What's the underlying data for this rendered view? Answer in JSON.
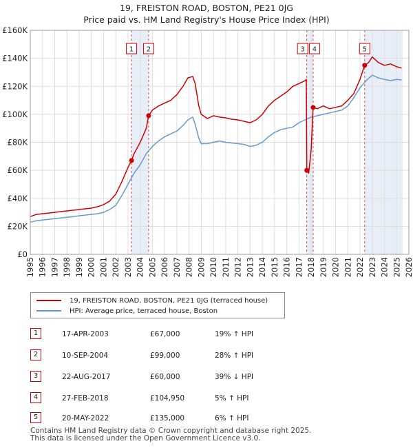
{
  "header": {
    "title": "19, FREISTON ROAD, BOSTON, PE21 0JG",
    "subtitle": "Price paid vs. HM Land Registry's House Price Index (HPI)"
  },
  "colors": {
    "property": "#cc0000",
    "hpi": "#6699cc",
    "band": "#e8eef8",
    "marker": "#cc0000"
  },
  "chart_data": {
    "type": "line",
    "xlim": [
      1995,
      2026
    ],
    "ylim": [
      0,
      160000
    ],
    "yticks": [
      {
        "v": 0,
        "label": "£0"
      },
      {
        "v": 20000,
        "label": "£20K"
      },
      {
        "v": 40000,
        "label": "£40K"
      },
      {
        "v": 60000,
        "label": "£60K"
      },
      {
        "v": 80000,
        "label": "£80K"
      },
      {
        "v": 100000,
        "label": "£100K"
      },
      {
        "v": 120000,
        "label": "£120K"
      },
      {
        "v": 140000,
        "label": "£140K"
      },
      {
        "v": 160000,
        "label": "£160K"
      }
    ],
    "xticks": [
      1995,
      1996,
      1997,
      1998,
      1999,
      2000,
      2001,
      2002,
      2003,
      2004,
      2005,
      2006,
      2007,
      2008,
      2009,
      2010,
      2011,
      2012,
      2013,
      2014,
      2015,
      2016,
      2017,
      2018,
      2019,
      2020,
      2021,
      2022,
      2023,
      2024,
      2025,
      2026
    ],
    "bands": [
      [
        2003.29,
        2004.69
      ],
      [
        2017.64,
        2018.16
      ],
      [
        2022.38,
        2025.5
      ]
    ],
    "series": [
      {
        "name": "19, FREISTON ROAD, BOSTON, PE21 0JG (terraced house)",
        "x": [
          1995.0,
          1995.5,
          1996.0,
          1996.5,
          1997.0,
          1997.5,
          1998.0,
          1998.5,
          1999.0,
          1999.5,
          2000.0,
          2000.5,
          2001.0,
          2001.5,
          2002.0,
          2002.5,
          2003.0,
          2003.29,
          2003.5,
          2004.0,
          2004.5,
          2004.69,
          2005.0,
          2005.5,
          2006.0,
          2006.5,
          2007.0,
          2007.5,
          2007.9,
          2008.3,
          2008.5,
          2008.8,
          2009.0,
          2009.5,
          2010.0,
          2010.5,
          2011.0,
          2011.5,
          2012.0,
          2012.5,
          2013.0,
          2013.5,
          2014.0,
          2014.5,
          2015.0,
          2015.5,
          2016.0,
          2016.5,
          2017.0,
          2017.5,
          2017.6,
          2017.64,
          2017.8,
          2018.0,
          2018.16,
          2018.5,
          2019.0,
          2019.5,
          2020.0,
          2020.5,
          2021.0,
          2021.5,
          2022.0,
          2022.38,
          2022.7,
          2023.0,
          2023.5,
          2024.0,
          2024.5,
          2025.0,
          2025.4
        ],
        "y": [
          27000,
          28500,
          29000,
          29500,
          30000,
          30500,
          31000,
          31500,
          32000,
          32500,
          33000,
          34000,
          35500,
          38000,
          43000,
          52000,
          62000,
          67000,
          72000,
          80000,
          90000,
          99000,
          103000,
          106000,
          108000,
          110000,
          114000,
          120000,
          126000,
          127000,
          122000,
          106000,
          100000,
          97000,
          99000,
          98000,
          97500,
          96500,
          96000,
          95000,
          94000,
          96000,
          100000,
          106000,
          110000,
          113000,
          116000,
          120000,
          122000,
          124000,
          125000,
          60000,
          58000,
          75000,
          104950,
          104000,
          106000,
          104000,
          105000,
          106000,
          110000,
          115000,
          125000,
          135000,
          137000,
          141000,
          137000,
          135000,
          136000,
          134000,
          133000
        ]
      },
      {
        "name": "HPI: Average price, terraced house, Boston",
        "x": [
          1995.0,
          1995.5,
          1996.0,
          1996.5,
          1997.0,
          1997.5,
          1998.0,
          1998.5,
          1999.0,
          1999.5,
          2000.0,
          2000.5,
          2001.0,
          2001.5,
          2002.0,
          2002.5,
          2003.0,
          2003.5,
          2004.0,
          2004.5,
          2005.0,
          2005.5,
          2006.0,
          2006.5,
          2007.0,
          2007.5,
          2007.9,
          2008.3,
          2008.5,
          2008.8,
          2009.0,
          2009.5,
          2010.0,
          2010.5,
          2011.0,
          2011.5,
          2012.0,
          2012.5,
          2013.0,
          2013.5,
          2014.0,
          2014.5,
          2015.0,
          2015.5,
          2016.0,
          2016.5,
          2017.0,
          2017.5,
          2018.0,
          2018.5,
          2019.0,
          2019.5,
          2020.0,
          2020.5,
          2021.0,
          2021.5,
          2022.0,
          2022.5,
          2023.0,
          2023.5,
          2024.0,
          2024.5,
          2025.0,
          2025.4
        ],
        "y": [
          23000,
          24000,
          24500,
          25000,
          25500,
          26000,
          26500,
          27000,
          27500,
          28000,
          28500,
          29000,
          30000,
          32000,
          35000,
          42000,
          50000,
          58000,
          64000,
          72000,
          77000,
          81000,
          84000,
          86000,
          88000,
          92000,
          96000,
          98000,
          93000,
          83000,
          79000,
          79000,
          80000,
          81000,
          80000,
          79500,
          79000,
          78500,
          77000,
          78000,
          80000,
          84000,
          87000,
          89000,
          90000,
          91000,
          94000,
          96000,
          98000,
          99000,
          100000,
          101000,
          102000,
          103000,
          106000,
          112000,
          119000,
          124000,
          128000,
          126000,
          125000,
          124000,
          125000,
          124500
        ]
      }
    ],
    "markers": [
      {
        "id": "1",
        "x": 2003.29,
        "y": 67000
      },
      {
        "id": "2",
        "x": 2004.69,
        "y": 99000
      },
      {
        "id": "3",
        "x": 2017.64,
        "y": 60000
      },
      {
        "id": "4",
        "x": 2018.16,
        "y": 104950
      },
      {
        "id": "5",
        "x": 2022.38,
        "y": 135000
      }
    ],
    "marker_labels": [
      {
        "text": "1",
        "x": 2003.29
      },
      {
        "text": "2",
        "x": 2004.69
      },
      {
        "text": "3",
        "x": 2017.64
      },
      {
        "text": "4",
        "x": 2018.16
      },
      {
        "text": "5",
        "x": 2022.38
      }
    ]
  },
  "legend": {
    "property_label": "19, FREISTON ROAD, BOSTON, PE21 0JG (terraced house)",
    "hpi_label": "HPI: Average price, terraced house, Boston"
  },
  "transactions": [
    {
      "num": "1",
      "date": "17-APR-2003",
      "price": "£67,000",
      "hpi": "19% ↑ HPI"
    },
    {
      "num": "2",
      "date": "10-SEP-2004",
      "price": "£99,000",
      "hpi": "28% ↑ HPI"
    },
    {
      "num": "3",
      "date": "22-AUG-2017",
      "price": "£60,000",
      "hpi": "39% ↓ HPI"
    },
    {
      "num": "4",
      "date": "27-FEB-2018",
      "price": "£104,950",
      "hpi": "5% ↑ HPI"
    },
    {
      "num": "5",
      "date": "20-MAY-2022",
      "price": "£135,000",
      "hpi": "6% ↑ HPI"
    }
  ],
  "footer": {
    "line1": "Contains HM Land Registry data © Crown copyright and database right 2025.",
    "line2": "This data is licensed under the Open Government Licence v3.0."
  }
}
